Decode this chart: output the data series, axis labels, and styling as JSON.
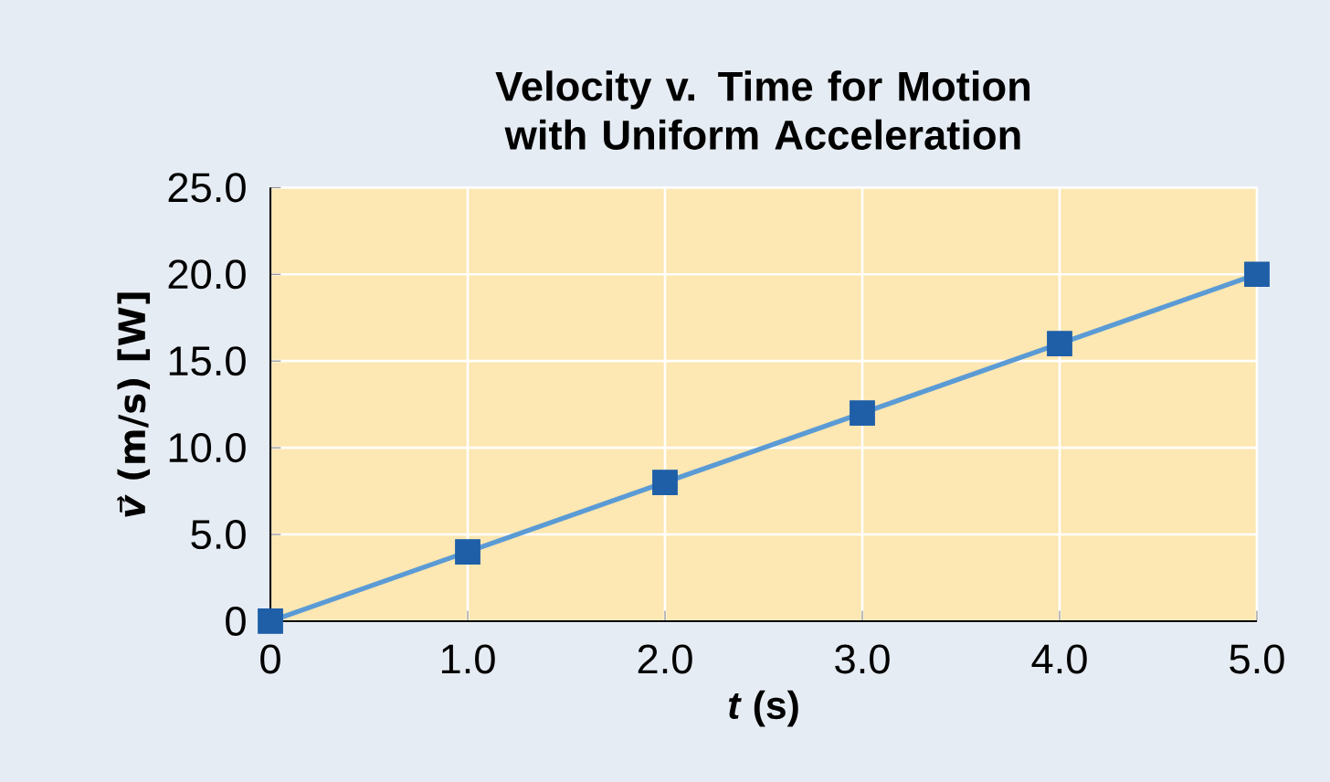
{
  "chart_data": {
    "type": "line",
    "title": "Velocity v. Time for Motion with Uniform Acceleration",
    "xlabel": "*t* (s)",
    "ylabel": "*v⃗* (m/s) [W]",
    "x": [
      0,
      1,
      2,
      3,
      4,
      5
    ],
    "series": [
      {
        "color": "#5b9bd5",
        "marker": "none",
        "values": [
          0,
          4,
          8,
          12,
          16,
          20
        ]
      },
      {
        "type": "scatter",
        "color": "#1f5fa8",
        "values": [
          0,
          4,
          8,
          12,
          16,
          20
        ]
      }
    ],
    "xlim": [
      0,
      5
    ],
    "ylim": [
      0,
      25
    ],
    "xticks": [
      {
        "value": 0,
        "label": "0"
      },
      {
        "value": 1,
        "label": "1.0"
      },
      {
        "value": 2,
        "label": "2.0"
      },
      {
        "value": 3,
        "label": "3.0"
      },
      {
        "value": 4,
        "label": "4.0"
      },
      {
        "value": 5,
        "label": "5.0"
      }
    ],
    "yticks": [
      {
        "value": 0,
        "label": "0"
      },
      {
        "value": 5,
        "label": "5.0"
      },
      {
        "value": 10,
        "label": "10.0"
      },
      {
        "value": 15,
        "label": "15.0"
      },
      {
        "value": 20,
        "label": "20.0"
      },
      {
        "value": 25,
        "label": "25.0"
      }
    ],
    "grid": true,
    "marker": "square",
    "line_style": "solid"
  }
}
